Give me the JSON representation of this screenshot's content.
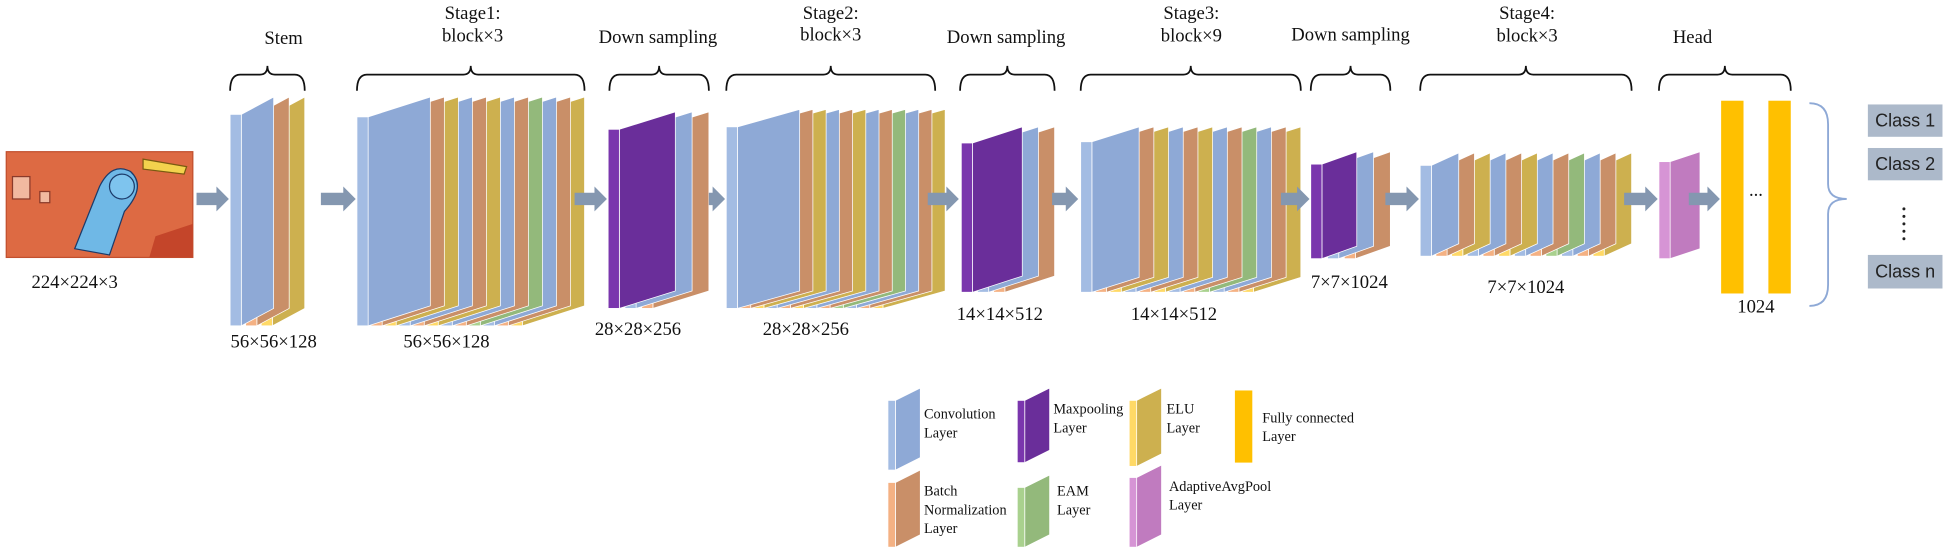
{
  "input": {
    "label": "224×224×3"
  },
  "stages": [
    {
      "title": [
        "Stem"
      ],
      "size": "56×56×128"
    },
    {
      "title": [
        "Stage1:",
        "block×3"
      ],
      "size": "56×56×128"
    },
    {
      "title": [
        "Down sampling"
      ],
      "size": "28×28×256"
    },
    {
      "title": [
        "Stage2:",
        "block×3"
      ],
      "size": "28×28×256"
    },
    {
      "title": [
        "Down sampling"
      ],
      "size": "14×14×512"
    },
    {
      "title": [
        "Stage3:",
        "block×9"
      ],
      "size": "14×14×512"
    },
    {
      "title": [
        "Down sampling"
      ],
      "size": "7×7×1024"
    },
    {
      "title": [
        "Stage4:",
        "block×3"
      ],
      "size": "7×7×1024"
    },
    {
      "title": [
        "Head"
      ],
      "size": "1024",
      "ellipsis": "..."
    }
  ],
  "classes": [
    "Class 1",
    "Class 2",
    "Class n"
  ],
  "legend": [
    {
      "label": [
        "Convolution",
        "Layer"
      ]
    },
    {
      "label": [
        "Maxpooling",
        "Layer"
      ]
    },
    {
      "label": [
        "ELU",
        "Layer"
      ]
    },
    {
      "label": [
        "Fully connected",
        "Layer"
      ]
    },
    {
      "label": [
        "Batch",
        "Normalization",
        "Layer"
      ]
    },
    {
      "label": [
        "EAM",
        "Layer"
      ]
    },
    {
      "label": [
        "AdaptiveAvgPool",
        "Layer"
      ]
    }
  ]
}
